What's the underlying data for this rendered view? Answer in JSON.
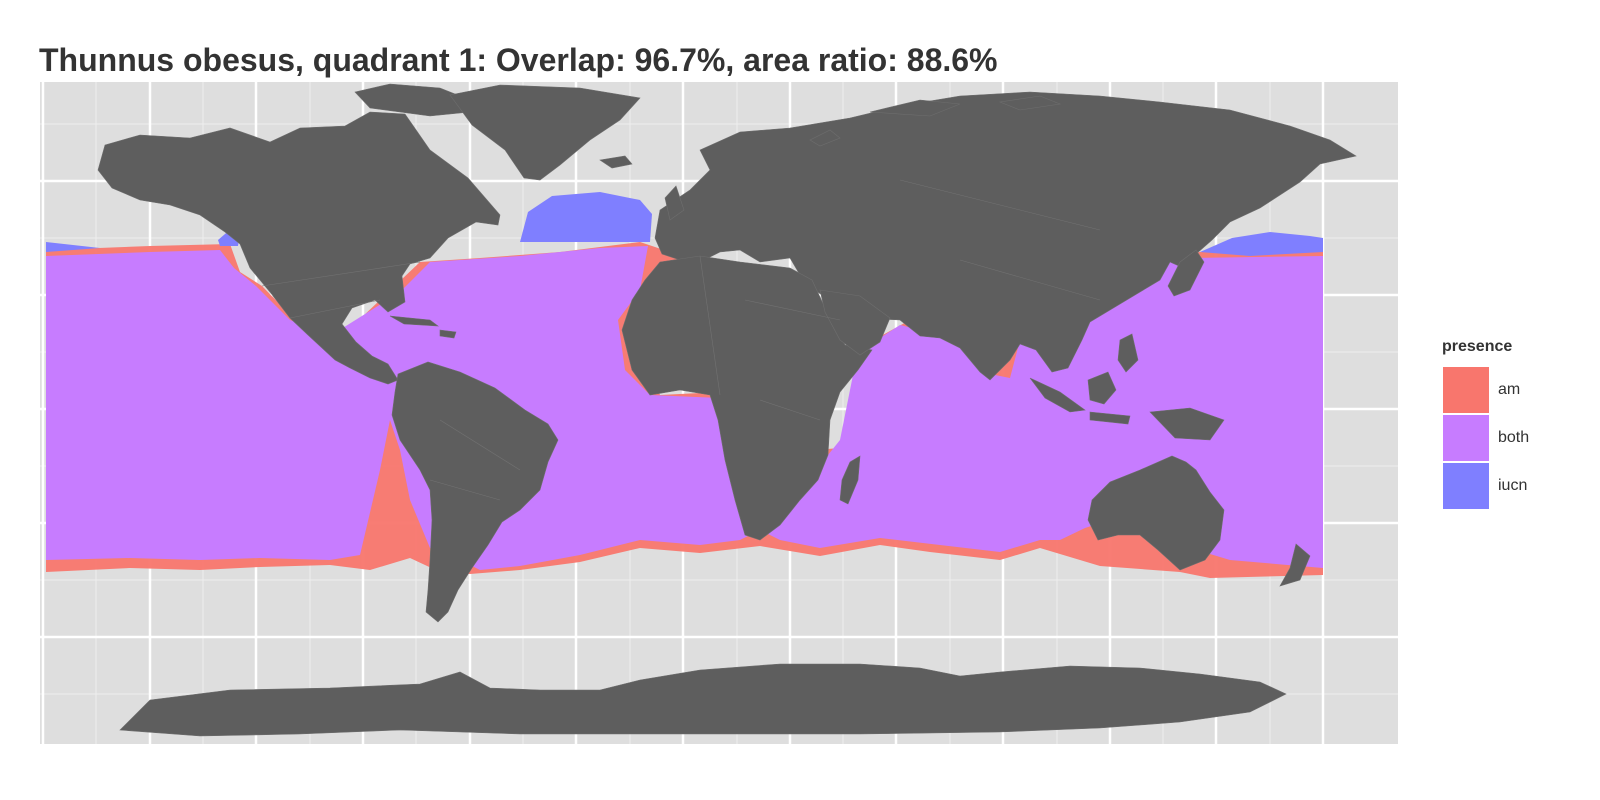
{
  "title": "Thunnus obesus, quadrant 1: Overlap: 96.7%, area ratio: 88.6%",
  "legend": {
    "title": "presence",
    "items": [
      {
        "label": "am",
        "color": "#F8766D"
      },
      {
        "label": "both",
        "color": "#C77CFF"
      },
      {
        "label": "iucn",
        "color": "#7F7FFF"
      }
    ]
  },
  "colors": {
    "panel_background": "#DEDEDE",
    "land": "#5E5E5E",
    "grid_major": "#FFFFFF",
    "grid_minor": "#EEEEEE"
  }
}
